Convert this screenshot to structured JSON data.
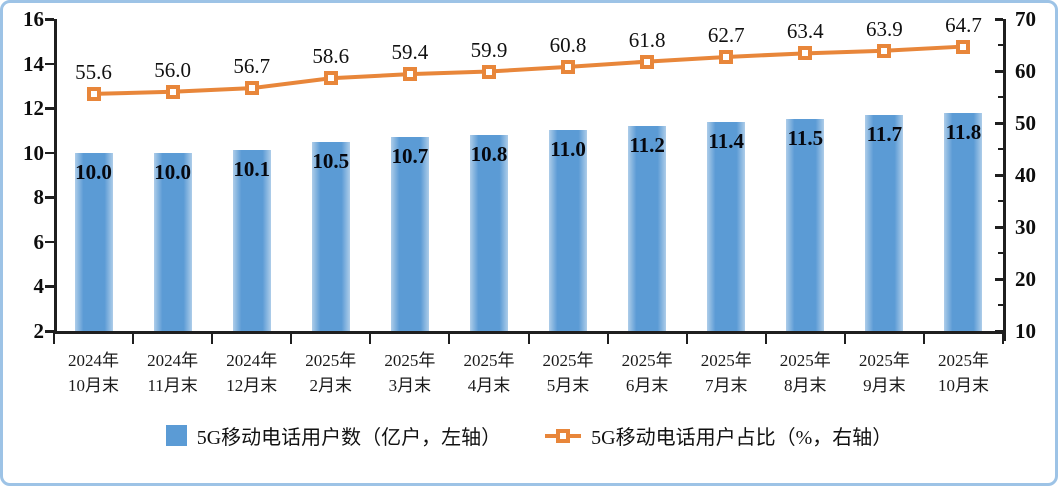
{
  "frame": {
    "border_color": "#9dc3e6",
    "background_color": "#ffffff"
  },
  "chart_data": {
    "type": "combo",
    "categories": [
      [
        "2024年",
        "10月末"
      ],
      [
        "2024年",
        "11月末"
      ],
      [
        "2024年",
        "12月末"
      ],
      [
        "2025年",
        "2月末"
      ],
      [
        "2025年",
        "3月末"
      ],
      [
        "2025年",
        "4月末"
      ],
      [
        "2025年",
        "5月末"
      ],
      [
        "2025年",
        "6月末"
      ],
      [
        "2025年",
        "7月末"
      ],
      [
        "2025年",
        "8月末"
      ],
      [
        "2025年",
        "9月末"
      ],
      [
        "2025年",
        "10月末"
      ]
    ],
    "series": [
      {
        "name": "5G移动电话用户数（亿户，左轴）",
        "type": "bar",
        "axis": "left",
        "color": "#5b9bd5",
        "values": [
          10.0,
          10.0,
          10.1,
          10.5,
          10.7,
          10.8,
          11.0,
          11.2,
          11.4,
          11.5,
          11.7,
          11.8
        ]
      },
      {
        "name": "5G移动电话用户占比（%，右轴）",
        "type": "line",
        "axis": "right",
        "color": "#e8863a",
        "values": [
          55.6,
          56.0,
          56.7,
          58.6,
          59.4,
          59.9,
          60.8,
          61.8,
          62.7,
          63.4,
          63.9,
          64.7
        ]
      }
    ],
    "left_axis": {
      "min": 2,
      "max": 16,
      "step": 2
    },
    "right_axis": {
      "min": 10,
      "max": 70,
      "step": 10,
      "minor_step": 5
    },
    "grid": "off",
    "legend_position": "bottom"
  }
}
